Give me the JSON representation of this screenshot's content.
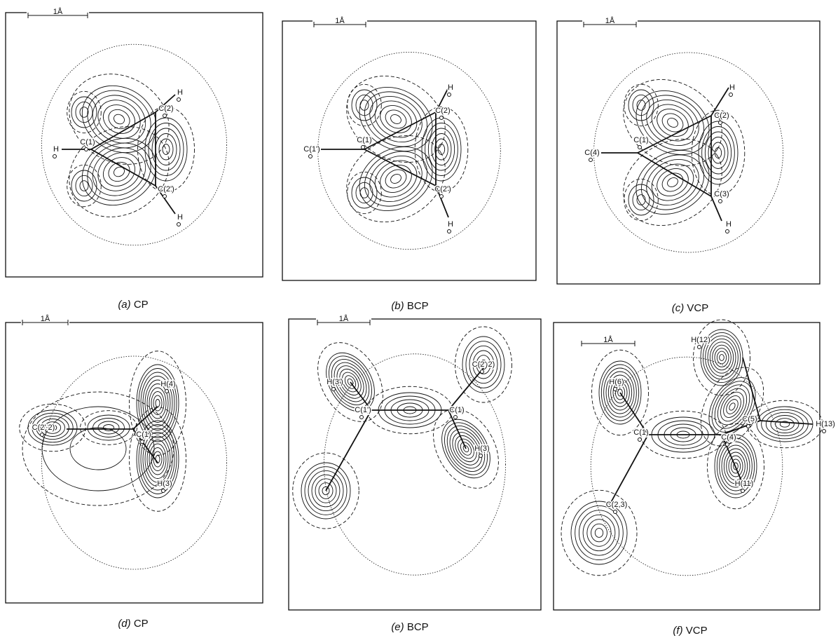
{
  "panels": [
    {
      "scale": "1Å",
      "letter": "(a)",
      "name": "CP",
      "atoms": [
        "H",
        "C(1)",
        "C(2)",
        "C(2')",
        "H",
        "H"
      ]
    },
    {
      "scale": "1Å",
      "letter": "(b)",
      "name": "BCP",
      "atoms": [
        "C(1')",
        "C(1)",
        "C(2)",
        "C(2')",
        "H",
        "H"
      ]
    },
    {
      "scale": "1Å",
      "letter": "(c)",
      "name": "VCP",
      "atoms": [
        "C(4)",
        "C(1)",
        "C(2)",
        "C(3)",
        "H",
        "H"
      ]
    },
    {
      "scale": "1Å",
      "letter": "(d)",
      "name": "CP",
      "atoms": [
        "C(2' 2)",
        "C(1)",
        "H(4)",
        "H(3)"
      ]
    },
    {
      "scale": "1Å",
      "letter": "(e)",
      "name": "BCP",
      "atoms": [
        "H(3')",
        "C(2' 2)",
        "C(1')",
        "C(1)",
        "H(3)"
      ]
    },
    {
      "scale": "1Å",
      "letter": "(f)",
      "name": "VCP",
      "atoms": [
        "H(12)",
        "H(6)",
        "C(5)",
        "H(13)",
        "C(1)",
        "C(4)",
        "H(11)",
        "C(2,3)"
      ]
    }
  ]
}
